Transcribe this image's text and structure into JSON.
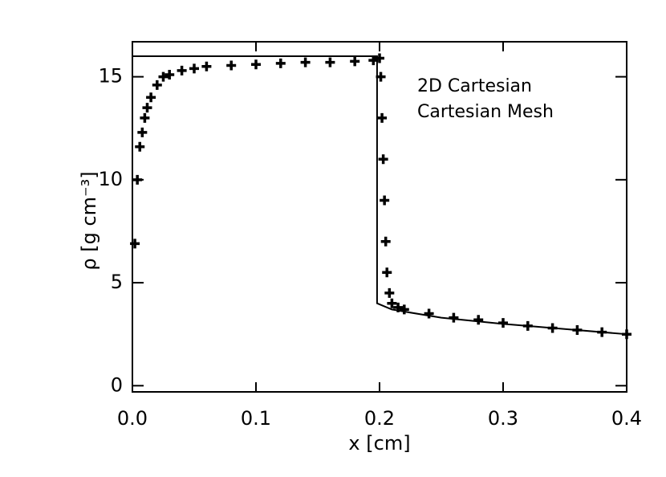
{
  "chart_data": {
    "type": "scatter",
    "annotations": [
      "2D Cartesian",
      "Cartesian Mesh"
    ],
    "xlabel": "x [cm]",
    "ylabel": "ρ [g cm⁻³]",
    "xlim": [
      0,
      0.4
    ],
    "ylim": [
      -0.3,
      16.7
    ],
    "xticks": [
      {
        "value": 0,
        "label": "0.0"
      },
      0.1,
      0.2,
      0.3,
      0.4
    ],
    "yticks": [
      0,
      5,
      10,
      15
    ],
    "series": [
      {
        "mark": "line",
        "color": "#000000",
        "x": [
          0,
          0.198,
          0.198,
          0.21,
          0.25,
          0.3,
          0.35,
          0.4
        ],
        "values": [
          16,
          16,
          4,
          3.7,
          3.3,
          3.0,
          2.75,
          2.5
        ]
      },
      {
        "mark": "plus",
        "color": "#000000",
        "x": [
          0.002,
          0.004,
          0.006,
          0.008,
          0.01,
          0.012,
          0.015,
          0.02,
          0.025,
          0.03,
          0.04,
          0.05,
          0.06,
          0.08,
          0.1,
          0.12,
          0.14,
          0.16,
          0.18,
          0.195,
          0.2,
          0.201,
          0.202,
          0.203,
          0.204,
          0.205,
          0.206,
          0.208,
          0.21,
          0.215,
          0.22,
          0.24,
          0.26,
          0.28,
          0.3,
          0.32,
          0.34,
          0.36,
          0.38,
          0.4
        ],
        "values": [
          6.9,
          10,
          11.6,
          12.3,
          13,
          13.5,
          14,
          14.6,
          15,
          15.1,
          15.3,
          15.4,
          15.5,
          15.55,
          15.6,
          15.65,
          15.7,
          15.7,
          15.75,
          15.8,
          15.9,
          15,
          13,
          11,
          9,
          7,
          5.5,
          4.5,
          4,
          3.8,
          3.7,
          3.5,
          3.3,
          3.2,
          3.05,
          2.9,
          2.8,
          2.7,
          2.6,
          2.5
        ]
      }
    ]
  }
}
